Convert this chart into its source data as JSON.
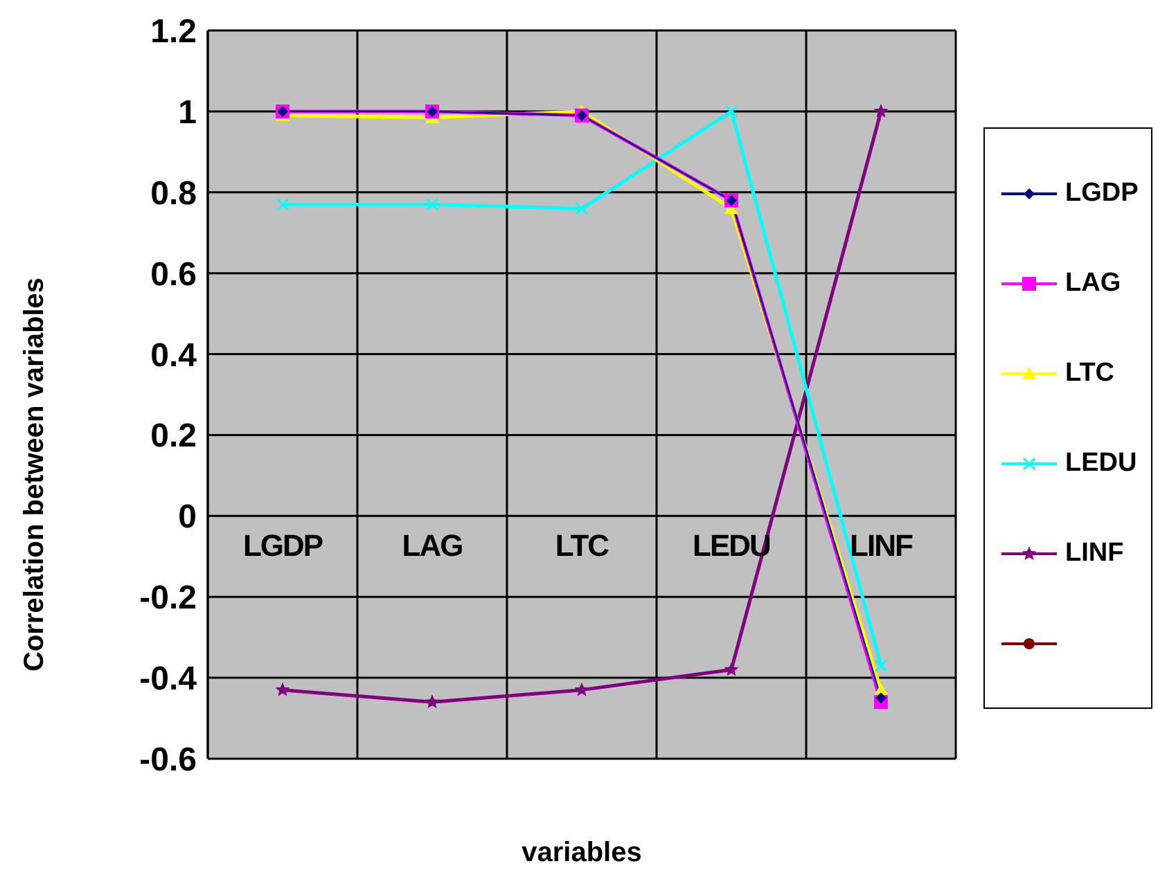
{
  "chart_data": {
    "type": "line",
    "xlabel": "variables",
    "ylabel": "Correlation between variables",
    "categories": [
      "LGDP",
      "LAG",
      "LTC",
      "LEDU",
      "LINF"
    ],
    "series": [
      {
        "name": "LGDP",
        "color": "#000080",
        "marker": "diamond",
        "values": [
          1.0,
          1.0,
          0.99,
          0.78,
          -0.45
        ]
      },
      {
        "name": "LAG",
        "color": "#ff00ff",
        "marker": "square",
        "values": [
          1.0,
          1.0,
          0.99,
          0.78,
          -0.46
        ]
      },
      {
        "name": "LTC",
        "color": "#ffff00",
        "marker": "triangle",
        "values": [
          0.99,
          0.985,
          1.0,
          0.76,
          -0.43
        ]
      },
      {
        "name": "LEDU",
        "color": "#00ffff",
        "marker": "cross",
        "values": [
          0.77,
          0.77,
          0.76,
          1.0,
          -0.37
        ]
      },
      {
        "name": "LINF",
        "color": "#800080",
        "marker": "star",
        "values": [
          -0.43,
          -0.46,
          -0.43,
          -0.38,
          1.0
        ]
      },
      {
        "color": "#800000",
        "marker": "circle",
        "values": [
          null,
          null,
          null,
          null,
          null
        ]
      }
    ],
    "ylim": [
      -0.6,
      1.2
    ],
    "yticks": [
      -0.6,
      -0.4,
      -0.2,
      0,
      0.2,
      0.4,
      0.6,
      0.8,
      1,
      1.2
    ],
    "grid": true,
    "legend": "right",
    "line_style": "solid"
  }
}
